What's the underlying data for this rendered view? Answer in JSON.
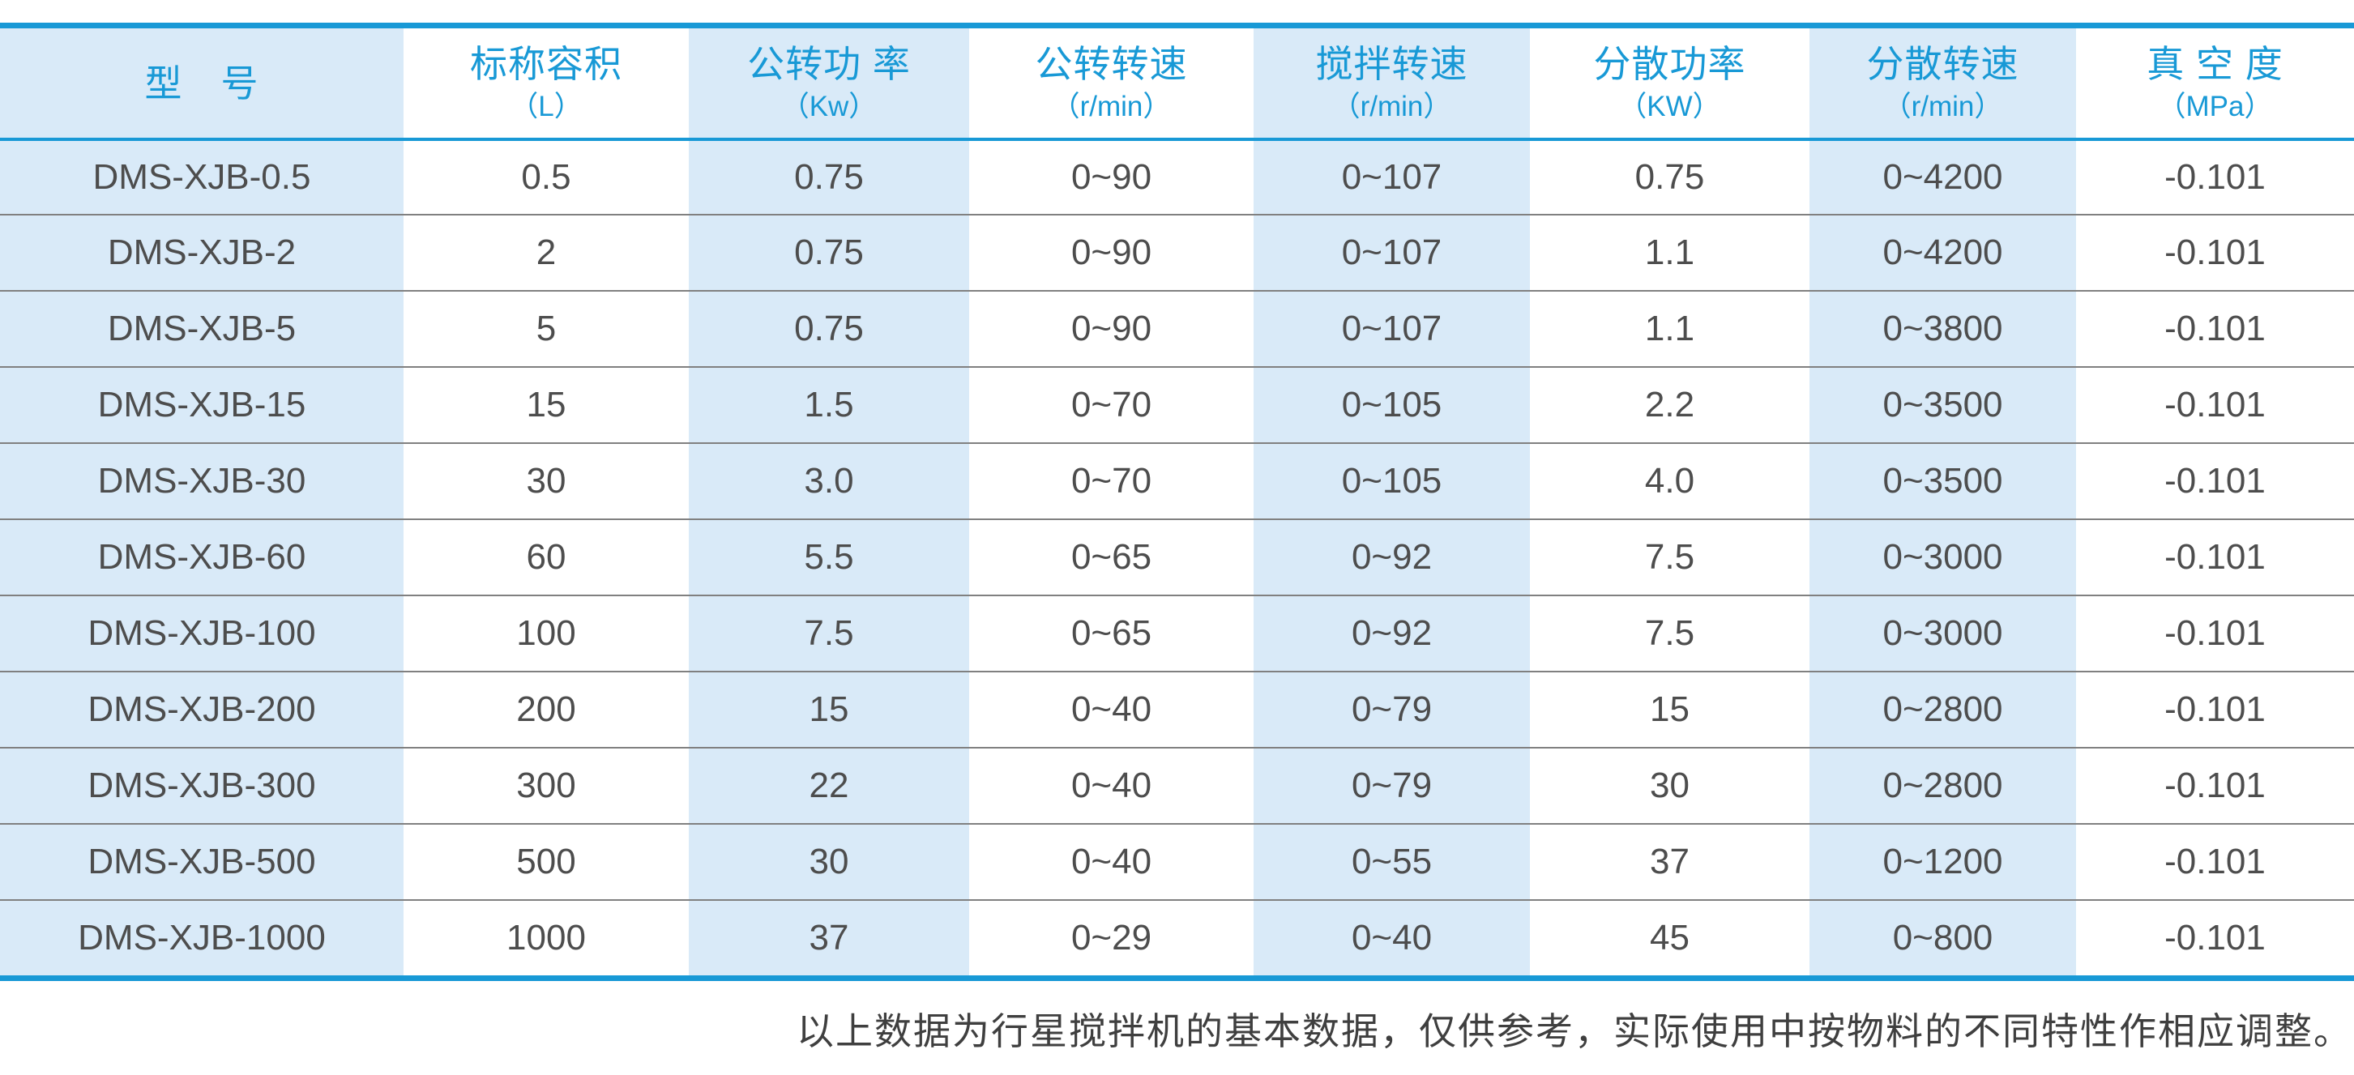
{
  "colors": {
    "accent": "#1899d6",
    "stripe": "#d9eaf8",
    "text": "#4d4d4d",
    "line": "#808080",
    "note": "#3f3f3f"
  },
  "table": {
    "columns": [
      {
        "key": "model",
        "title": "型　号",
        "unit": ""
      },
      {
        "key": "nominal-capacity",
        "title": "标称容积",
        "unit": "（L）"
      },
      {
        "key": "revolution-power",
        "title": "公转功 率",
        "unit": "（Kw）"
      },
      {
        "key": "revolution-speed",
        "title": "公转转速",
        "unit": "（r/min）"
      },
      {
        "key": "stirring-speed",
        "title": "搅拌转速",
        "unit": "（r/min）"
      },
      {
        "key": "dispersion-power",
        "title": "分散功率",
        "unit": "（KW）"
      },
      {
        "key": "dispersion-speed",
        "title": "分散转速",
        "unit": "（r/min）"
      },
      {
        "key": "vacuum-degree",
        "title": "真 空 度",
        "unit": "（MPa）"
      }
    ],
    "rows": [
      [
        "DMS-XJB-0.5",
        "0.5",
        "0.75",
        "0~90",
        "0~107",
        "0.75",
        "0~4200",
        "-0.101"
      ],
      [
        "DMS-XJB-2",
        "2",
        "0.75",
        "0~90",
        "0~107",
        "1.1",
        "0~4200",
        "-0.101"
      ],
      [
        "DMS-XJB-5",
        "5",
        "0.75",
        "0~90",
        "0~107",
        "1.1",
        "0~3800",
        "-0.101"
      ],
      [
        "DMS-XJB-15",
        "15",
        "1.5",
        "0~70",
        "0~105",
        "2.2",
        "0~3500",
        "-0.101"
      ],
      [
        "DMS-XJB-30",
        "30",
        "3.0",
        "0~70",
        "0~105",
        "4.0",
        "0~3500",
        "-0.101"
      ],
      [
        "DMS-XJB-60",
        "60",
        "5.5",
        "0~65",
        "0~92",
        "7.5",
        "0~3000",
        "-0.101"
      ],
      [
        "DMS-XJB-100",
        "100",
        "7.5",
        "0~65",
        "0~92",
        "7.5",
        "0~3000",
        "-0.101"
      ],
      [
        "DMS-XJB-200",
        "200",
        "15",
        "0~40",
        "0~79",
        "15",
        "0~2800",
        "-0.101"
      ],
      [
        "DMS-XJB-300",
        "300",
        "22",
        "0~40",
        "0~79",
        "30",
        "0~2800",
        "-0.101"
      ],
      [
        "DMS-XJB-500",
        "500",
        "30",
        "0~40",
        "0~55",
        "37",
        "0~1200",
        "-0.101"
      ],
      [
        "DMS-XJB-1000",
        "1000",
        "37",
        "0~29",
        "0~40",
        "45",
        "0~800",
        "-0.101"
      ]
    ]
  },
  "footer": {
    "note": "以上数据为行星搅拌机的基本数据，仅供参考，实际使用中按物料的不同特性作相应调整。"
  }
}
